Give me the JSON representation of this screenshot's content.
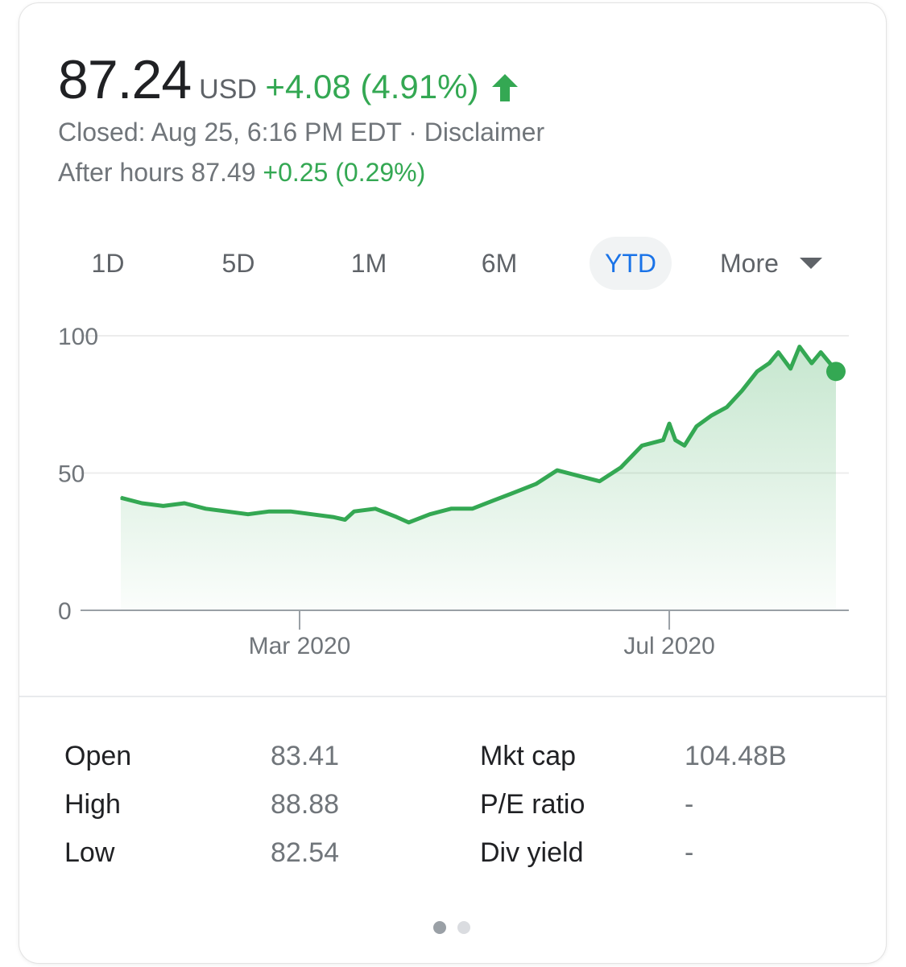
{
  "quote": {
    "price": "87.24",
    "currency": "USD",
    "change": "+4.08 (4.91%)",
    "closed_text": "Closed: Aug 25, 6:16 PM EDT · Disclaimer",
    "after_hours_label": "After hours 87.49",
    "after_hours_change": "+0.25 (0.29%)"
  },
  "ranges": [
    {
      "label": "1D"
    },
    {
      "label": "5D"
    },
    {
      "label": "1M"
    },
    {
      "label": "6M"
    },
    {
      "label": "YTD",
      "selected": true
    }
  ],
  "more_label": "More",
  "colors": {
    "up": "#34a853",
    "selected_tab": "#1a73e8"
  },
  "chart_data": {
    "type": "area",
    "yticks": [
      "100",
      "50",
      "0"
    ],
    "xticks": [
      {
        "label": "Mar 2020",
        "date": "2020-03-01"
      },
      {
        "label": "Jul 2020",
        "date": "2020-07-01"
      }
    ],
    "xlim": [
      "2020-01-02",
      "2020-08-25"
    ],
    "ylim": [
      0,
      100
    ],
    "grid": true,
    "series": [
      {
        "values": [
          [
            "2020-01-02",
            41
          ],
          [
            "2020-01-09",
            39
          ],
          [
            "2020-01-16",
            38
          ],
          [
            "2020-01-23",
            39
          ],
          [
            "2020-01-30",
            37
          ],
          [
            "2020-02-06",
            36
          ],
          [
            "2020-02-13",
            35
          ],
          [
            "2020-02-20",
            36
          ],
          [
            "2020-02-27",
            36
          ],
          [
            "2020-03-05",
            35
          ],
          [
            "2020-03-12",
            34
          ],
          [
            "2020-03-16",
            33
          ],
          [
            "2020-03-19",
            36
          ],
          [
            "2020-03-26",
            37
          ],
          [
            "2020-04-02",
            34
          ],
          [
            "2020-04-06",
            32
          ],
          [
            "2020-04-13",
            35
          ],
          [
            "2020-04-20",
            37
          ],
          [
            "2020-04-27",
            37
          ],
          [
            "2020-05-04",
            40
          ],
          [
            "2020-05-11",
            43
          ],
          [
            "2020-05-18",
            46
          ],
          [
            "2020-05-25",
            51
          ],
          [
            "2020-06-01",
            49
          ],
          [
            "2020-06-08",
            47
          ],
          [
            "2020-06-15",
            52
          ],
          [
            "2020-06-22",
            60
          ],
          [
            "2020-06-29",
            62
          ],
          [
            "2020-07-01",
            68
          ],
          [
            "2020-07-03",
            62
          ],
          [
            "2020-07-06",
            60
          ],
          [
            "2020-07-10",
            67
          ],
          [
            "2020-07-15",
            71
          ],
          [
            "2020-07-20",
            74
          ],
          [
            "2020-07-25",
            80
          ],
          [
            "2020-07-30",
            87
          ],
          [
            "2020-08-03",
            90
          ],
          [
            "2020-08-06",
            94
          ],
          [
            "2020-08-10",
            88
          ],
          [
            "2020-08-13",
            96
          ],
          [
            "2020-08-17",
            90
          ],
          [
            "2020-08-20",
            94
          ],
          [
            "2020-08-23",
            90
          ],
          [
            "2020-08-25",
            87
          ]
        ]
      }
    ]
  },
  "stats": [
    {
      "label": "Open",
      "value": "83.41"
    },
    {
      "label": "High",
      "value": "88.88"
    },
    {
      "label": "Low",
      "value": "82.54"
    },
    {
      "label": "Mkt cap",
      "value": "104.48B"
    },
    {
      "label": "P/E ratio",
      "value": "-"
    },
    {
      "label": "Div yield",
      "value": "-"
    }
  ],
  "pager": {
    "active": 0,
    "count": 2
  }
}
